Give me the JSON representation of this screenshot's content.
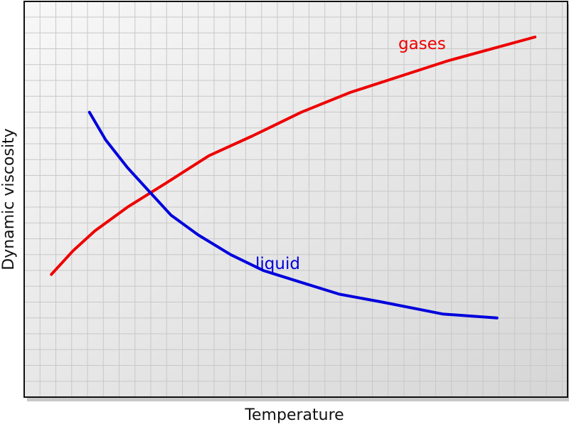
{
  "chart_data": {
    "type": "line",
    "title": "",
    "xlabel": "Temperature",
    "ylabel": "Dynamic viscosity",
    "xlim": [
      0,
      100
    ],
    "ylim": [
      0,
      100
    ],
    "ticks_shown": false,
    "grid": true,
    "legend": "inline labels near curves",
    "colors": {
      "gases": "#ee0000",
      "liquid": "#0000dd",
      "grid": "#c8c8c8",
      "background_light": "#f8f8f8",
      "background_dark": "#d6d6d6",
      "frame": "#111111"
    },
    "series": [
      {
        "name": "gases",
        "x": [
          5,
          9,
          13,
          19,
          26,
          34,
          42,
          51,
          60,
          69,
          78,
          86,
          94
        ],
        "y": [
          31,
          37,
          42,
          48,
          54,
          61,
          66,
          72,
          77,
          81,
          85,
          88,
          91
        ]
      },
      {
        "name": "liquid",
        "x": [
          12,
          15,
          19,
          23,
          27,
          32,
          38,
          44,
          51,
          58,
          66,
          77,
          87
        ],
        "y": [
          72,
          65,
          58,
          52,
          46,
          41,
          36,
          32,
          29,
          26,
          24,
          21,
          20
        ]
      }
    ]
  }
}
